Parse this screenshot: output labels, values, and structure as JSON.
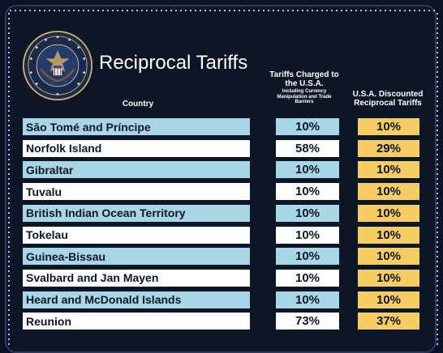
{
  "title": "Reciprocal Tariffs",
  "headers": {
    "country": "Country",
    "charged_main": "Tariffs Charged to the U.S.A.",
    "charged_sub": "Including Currency Manipulation and Trade Barriers",
    "discounted": "U.S.A. Discounted Reciprocal Tariffs"
  },
  "seal": {
    "text": "SEAL OF THE PRESIDENT OF THE UNITED STATES"
  },
  "colors": {
    "background": "#0d1627",
    "row_blue": "#a9d6e6",
    "row_white": "#ffffff",
    "discount_gold": "#f6cd63"
  },
  "rows": [
    {
      "country": "São Tomé and Príncipe",
      "charged": "10%",
      "discounted": "10%"
    },
    {
      "country": "Norfolk Island",
      "charged": "58%",
      "discounted": "29%"
    },
    {
      "country": "Gibraltar",
      "charged": "10%",
      "discounted": "10%"
    },
    {
      "country": "Tuvalu",
      "charged": "10%",
      "discounted": "10%"
    },
    {
      "country": "British Indian Ocean Territory",
      "charged": "10%",
      "discounted": "10%"
    },
    {
      "country": "Tokelau",
      "charged": "10%",
      "discounted": "10%"
    },
    {
      "country": "Guinea-Bissau",
      "charged": "10%",
      "discounted": "10%"
    },
    {
      "country": "Svalbard and Jan Mayen",
      "charged": "10%",
      "discounted": "10%"
    },
    {
      "country": "Heard and McDonald Islands",
      "charged": "10%",
      "discounted": "10%"
    },
    {
      "country": "Reunion",
      "charged": "73%",
      "discounted": "37%"
    }
  ]
}
